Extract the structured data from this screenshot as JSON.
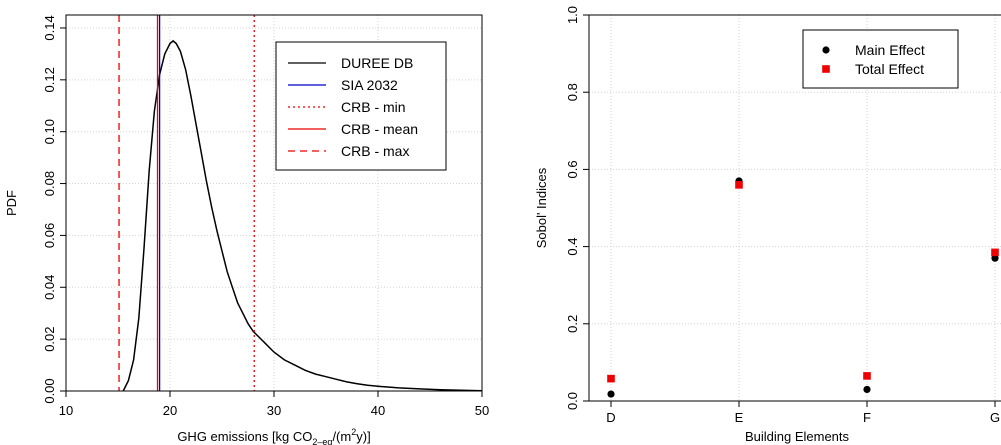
{
  "chart_data": [
    {
      "type": "line",
      "title": "",
      "xlabel": "GHG emissions [kg CO2–eq/(m2y)]",
      "xlabel_parts": {
        "main": "GHG emissions [kg CO",
        "sub": "2–eq",
        "mid": "/(m",
        "sup": "2",
        "end": "y)]"
      },
      "ylabel": "PDF",
      "xlim": [
        10,
        50
      ],
      "ylim": [
        0,
        0.145
      ],
      "xticks": [
        10,
        20,
        30,
        40,
        50
      ],
      "xtick_labels": [
        "10",
        "20",
        "30",
        "40",
        "50"
      ],
      "yticks": [
        0.0,
        0.02,
        0.04,
        0.06,
        0.08,
        0.1,
        0.12,
        0.14
      ],
      "ytick_labels": [
        "0.00",
        "0.02",
        "0.04",
        "0.06",
        "0.08",
        "0.10",
        "0.12",
        "0.14"
      ],
      "grid": true,
      "legend_position": "top-right",
      "series": [
        {
          "name": "DUREE DB",
          "color": "#000000",
          "style": "solid",
          "x": [
            15.5,
            16.0,
            16.5,
            17.0,
            17.5,
            18.0,
            18.5,
            19.0,
            19.5,
            20.0,
            20.3,
            20.6,
            21.0,
            21.5,
            22.0,
            22.5,
            23.0,
            23.5,
            24.0,
            24.5,
            25.0,
            25.5,
            26.0,
            26.5,
            27.0,
            27.5,
            28.0,
            28.5,
            29.0,
            30.0,
            31.0,
            32.0,
            33.0,
            34.0,
            35.0,
            36.0,
            37.0,
            38.0,
            39.0,
            40.0,
            42.0,
            44.0,
            46.0,
            48.0,
            50.0
          ],
          "y": [
            0.0,
            0.004,
            0.012,
            0.028,
            0.055,
            0.085,
            0.108,
            0.122,
            0.13,
            0.134,
            0.135,
            0.134,
            0.131,
            0.124,
            0.114,
            0.103,
            0.092,
            0.081,
            0.071,
            0.062,
            0.054,
            0.046,
            0.04,
            0.034,
            0.03,
            0.026,
            0.023,
            0.021,
            0.019,
            0.015,
            0.012,
            0.01,
            0.008,
            0.0065,
            0.0055,
            0.0045,
            0.0035,
            0.0028,
            0.0022,
            0.0018,
            0.0012,
            0.0008,
            0.0005,
            0.0003,
            0.0001
          ]
        },
        {
          "name": "SIA 2032",
          "color": "#0000cc",
          "style": "solid",
          "vline": 19.0
        },
        {
          "name": "CRB - min",
          "color": "#ee0000",
          "style": "dotted",
          "vline": 28.1
        },
        {
          "name": "CRB - mean",
          "color": "#ee0000",
          "style": "solid",
          "vline": 18.8
        },
        {
          "name": "CRB - max",
          "color": "#ee0000",
          "style": "dashed",
          "vline": 15.1
        }
      ]
    },
    {
      "type": "scatter",
      "title": "",
      "xlabel": "Building Elements",
      "ylabel": "Sobol' Indices",
      "categories": [
        "D",
        "E",
        "F",
        "G"
      ],
      "ylim": [
        0,
        1.0
      ],
      "yticks": [
        0.0,
        0.2,
        0.4,
        0.6,
        0.8,
        1.0
      ],
      "ytick_labels": [
        "0.0",
        "0.2",
        "0.4",
        "0.6",
        "0.8",
        "1.0"
      ],
      "grid": true,
      "legend_position": "top-right",
      "series": [
        {
          "name": "Main Effect",
          "color": "#000000",
          "marker": "circle",
          "values": [
            0.018,
            0.57,
            0.03,
            0.37
          ]
        },
        {
          "name": "Total Effect",
          "color": "#ee0000",
          "marker": "square",
          "values": [
            0.058,
            0.56,
            0.065,
            0.385
          ]
        }
      ]
    }
  ]
}
